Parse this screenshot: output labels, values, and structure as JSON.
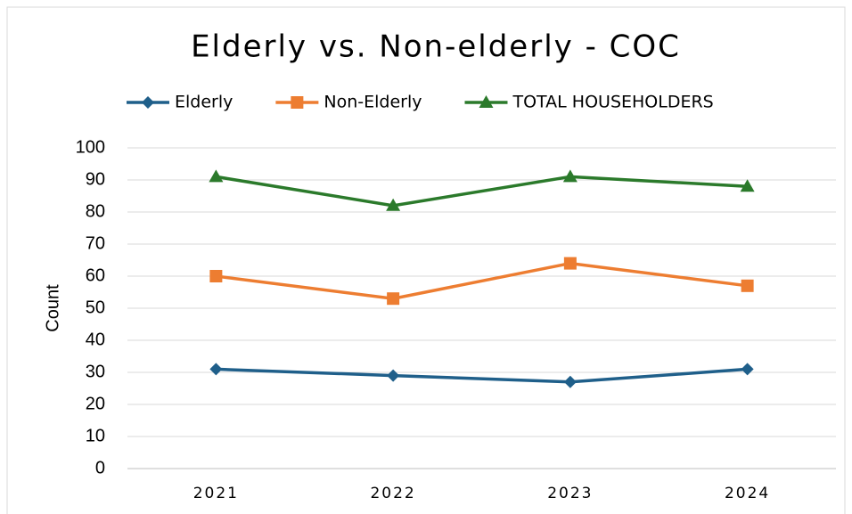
{
  "chart_data": {
    "type": "line",
    "title": "Elderly vs. Non-elderly - COC",
    "y_label": "Count",
    "categories": [
      "2021",
      "2022",
      "2023",
      "2024"
    ],
    "series": [
      {
        "name": "Elderly",
        "color": "#1f5f8a",
        "marker": "diamond",
        "values": [
          31,
          29,
          27,
          31
        ]
      },
      {
        "name": "Non-Elderly",
        "color": "#ed7d31",
        "marker": "square",
        "values": [
          60,
          53,
          64,
          57
        ]
      },
      {
        "name": "TOTAL HOUSEHOLDERS",
        "color": "#2b7a2b",
        "marker": "triangle",
        "values": [
          91,
          82,
          91,
          88
        ]
      }
    ],
    "ylim": [
      0,
      100
    ],
    "yticks": [
      0,
      10,
      20,
      30,
      40,
      50,
      60,
      70,
      80,
      90,
      100
    ],
    "grid": true,
    "legend": "top"
  }
}
